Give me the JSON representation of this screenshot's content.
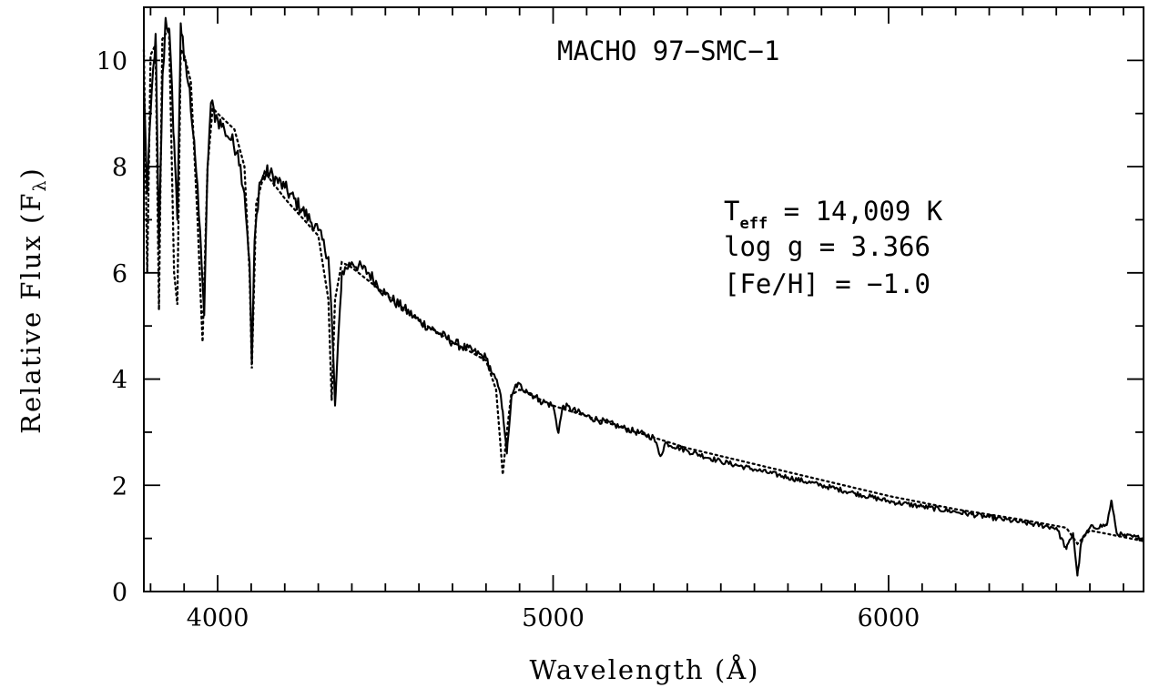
{
  "chart_data": {
    "type": "line",
    "title": "MACHO 97−SMC−1",
    "xlabel": "Wavelength (Å)",
    "ylabel": "Relative Flux (F",
    "ylabel_sub": "λ",
    "ylabel_close": ")",
    "xlim": [
      3780,
      6760
    ],
    "ylim": [
      0,
      11
    ],
    "x_ticks_major": [
      4000,
      5000,
      6000
    ],
    "x_tick_labels": [
      "4000",
      "5000",
      "6000"
    ],
    "y_ticks_major": [
      0,
      2,
      4,
      6,
      8,
      10
    ],
    "y_tick_labels": [
      "0",
      "2",
      "4",
      "6",
      "8",
      "10"
    ],
    "grid": false,
    "parameters": {
      "teff_symbol": "T",
      "teff_sub": "eff",
      "teff_value": " = 14,009 K",
      "logg": "log g = 3.366",
      "feh": "[Fe/H] = −1.0"
    },
    "series": [
      {
        "style": "solid",
        "x": [
          3780,
          3790,
          3800,
          3815,
          3825,
          3835,
          3845,
          3855,
          3870,
          3880,
          3890,
          3900,
          3915,
          3930,
          3950,
          3960,
          3970,
          3980,
          3990,
          4000,
          4020,
          4040,
          4060,
          4080,
          4095,
          4102,
          4110,
          4125,
          4150,
          4200,
          4250,
          4300,
          4330,
          4340,
          4350,
          4370,
          4400,
          4450,
          4500,
          4600,
          4700,
          4800,
          4820,
          4840,
          4850,
          4862,
          4875,
          4890,
          4920,
          4960,
          5000,
          5015,
          5030,
          5100,
          5200,
          5300,
          5320,
          5335,
          5400,
          5500,
          5600,
          5700,
          5800,
          5900,
          6000,
          6100,
          6200,
          6300,
          6400,
          6500,
          6530,
          6550,
          6563,
          6575,
          6600,
          6650,
          6665,
          6680,
          6700,
          6760
        ],
        "y": [
          9.5,
          7.5,
          9.0,
          10.5,
          6.5,
          9.5,
          10.8,
          10.6,
          8.5,
          7.0,
          10.7,
          10.0,
          9.5,
          8.5,
          6.5,
          5.2,
          8.0,
          9.2,
          9.0,
          8.9,
          8.7,
          8.5,
          8.3,
          7.5,
          6.2,
          4.3,
          6.6,
          7.7,
          7.9,
          7.6,
          7.2,
          6.8,
          6.3,
          5.2,
          3.5,
          6.0,
          6.2,
          6.0,
          5.6,
          5.1,
          4.7,
          4.4,
          4.1,
          3.8,
          3.4,
          2.6,
          3.6,
          3.9,
          3.8,
          3.6,
          3.5,
          3.0,
          3.5,
          3.3,
          3.1,
          2.9,
          2.55,
          2.8,
          2.65,
          2.45,
          2.3,
          2.15,
          2.0,
          1.85,
          1.7,
          1.6,
          1.5,
          1.4,
          1.3,
          1.2,
          0.8,
          1.1,
          0.3,
          0.95,
          1.2,
          1.25,
          1.7,
          1.1,
          1.05,
          1.0
        ]
      },
      {
        "style": "dotted",
        "x": [
          3780,
          3790,
          3800,
          3815,
          3825,
          3835,
          3845,
          3855,
          3870,
          3880,
          3890,
          3900,
          3920,
          3940,
          3955,
          3970,
          3985,
          4000,
          4050,
          4080,
          4095,
          4102,
          4115,
          4140,
          4200,
          4300,
          4330,
          4340,
          4350,
          4370,
          4400,
          4500,
          4600,
          4700,
          4800,
          4830,
          4850,
          4862,
          4875,
          4900,
          5000,
          5200,
          5400,
          5600,
          5800,
          6000,
          6200,
          6400,
          6530,
          6563,
          6600,
          6760
        ],
        "y": [
          10.2,
          6.0,
          10.1,
          10.3,
          5.3,
          10.4,
          10.5,
          10.6,
          6.0,
          5.4,
          10.2,
          10.1,
          9.6,
          7.0,
          4.7,
          8.0,
          9.1,
          9.0,
          8.7,
          8.0,
          6.0,
          4.2,
          7.3,
          7.9,
          7.4,
          6.7,
          5.5,
          3.6,
          5.5,
          6.2,
          6.1,
          5.6,
          5.1,
          4.7,
          4.35,
          3.8,
          2.2,
          3.0,
          3.7,
          3.8,
          3.5,
          3.1,
          2.7,
          2.4,
          2.1,
          1.8,
          1.55,
          1.35,
          1.2,
          0.9,
          1.15,
          0.95
        ]
      }
    ]
  }
}
